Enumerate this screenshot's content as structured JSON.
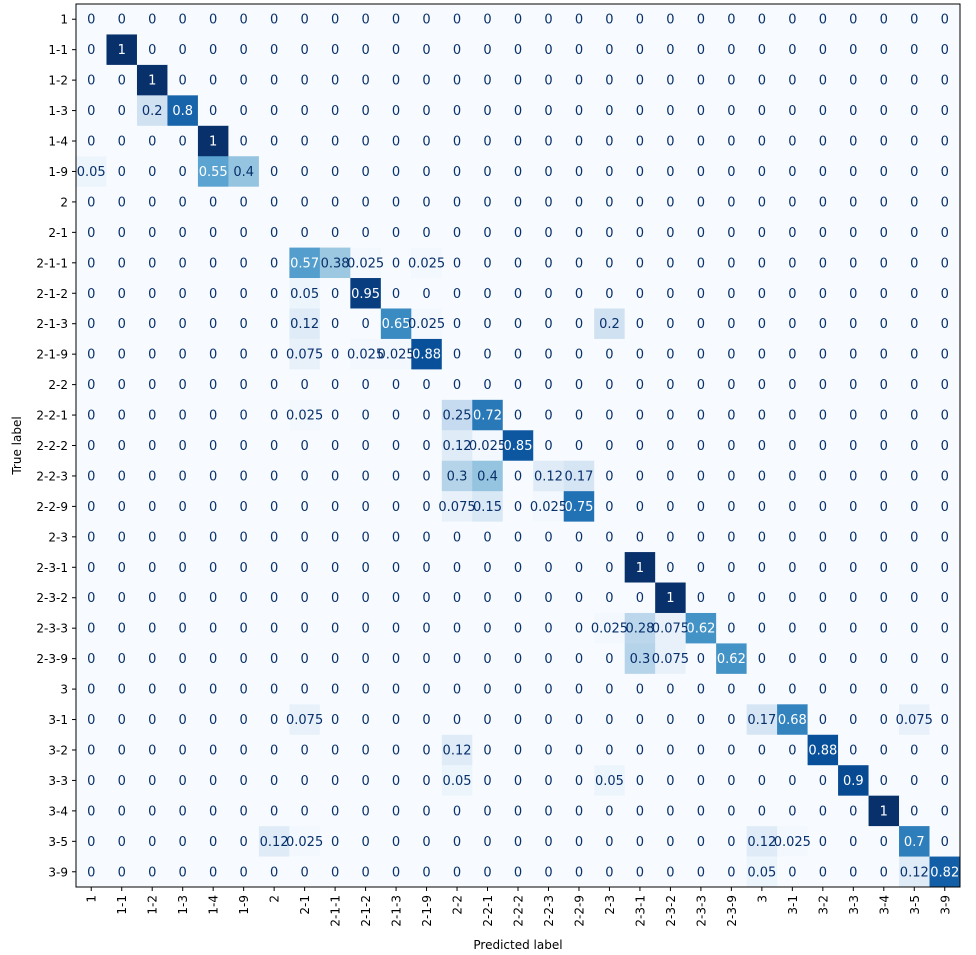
{
  "chart_data": {
    "type": "heatmap",
    "xlabel": "Predicted label",
    "ylabel": "True label",
    "labels": [
      "1",
      "1-1",
      "1-2",
      "1-3",
      "1-4",
      "1-9",
      "2",
      "2-1",
      "2-1-1",
      "2-1-2",
      "2-1-3",
      "2-1-9",
      "2-2",
      "2-2-1",
      "2-2-2",
      "2-2-3",
      "2-2-9",
      "2-3",
      "2-3-1",
      "2-3-2",
      "2-3-3",
      "2-3-9",
      "3",
      "3-1",
      "3-2",
      "3-3",
      "3-4",
      "3-5",
      "3-9"
    ],
    "cells": [
      [
        "0",
        "0",
        "0",
        "0",
        "0",
        "0",
        "0",
        "0",
        "0",
        "0",
        "0",
        "0",
        "0",
        "0",
        "0",
        "0",
        "0",
        "0",
        "0",
        "0",
        "0",
        "0",
        "0",
        "0",
        "0",
        "0",
        "0",
        "0",
        "0"
      ],
      [
        "0",
        "1",
        "0",
        "0",
        "0",
        "0",
        "0",
        "0",
        "0",
        "0",
        "0",
        "0",
        "0",
        "0",
        "0",
        "0",
        "0",
        "0",
        "0",
        "0",
        "0",
        "0",
        "0",
        "0",
        "0",
        "0",
        "0",
        "0",
        "0"
      ],
      [
        "0",
        "0",
        "1",
        "0",
        "0",
        "0",
        "0",
        "0",
        "0",
        "0",
        "0",
        "0",
        "0",
        "0",
        "0",
        "0",
        "0",
        "0",
        "0",
        "0",
        "0",
        "0",
        "0",
        "0",
        "0",
        "0",
        "0",
        "0",
        "0"
      ],
      [
        "0",
        "0",
        "0.2",
        "0.8",
        "0",
        "0",
        "0",
        "0",
        "0",
        "0",
        "0",
        "0",
        "0",
        "0",
        "0",
        "0",
        "0",
        "0",
        "0",
        "0",
        "0",
        "0",
        "0",
        "0",
        "0",
        "0",
        "0",
        "0",
        "0"
      ],
      [
        "0",
        "0",
        "0",
        "0",
        "1",
        "0",
        "0",
        "0",
        "0",
        "0",
        "0",
        "0",
        "0",
        "0",
        "0",
        "0",
        "0",
        "0",
        "0",
        "0",
        "0",
        "0",
        "0",
        "0",
        "0",
        "0",
        "0",
        "0",
        "0"
      ],
      [
        "0.05",
        "0",
        "0",
        "0",
        "0.55",
        "0.4",
        "0",
        "0",
        "0",
        "0",
        "0",
        "0",
        "0",
        "0",
        "0",
        "0",
        "0",
        "0",
        "0",
        "0",
        "0",
        "0",
        "0",
        "0",
        "0",
        "0",
        "0",
        "0",
        "0"
      ],
      [
        "0",
        "0",
        "0",
        "0",
        "0",
        "0",
        "0",
        "0",
        "0",
        "0",
        "0",
        "0",
        "0",
        "0",
        "0",
        "0",
        "0",
        "0",
        "0",
        "0",
        "0",
        "0",
        "0",
        "0",
        "0",
        "0",
        "0",
        "0",
        "0"
      ],
      [
        "0",
        "0",
        "0",
        "0",
        "0",
        "0",
        "0",
        "0",
        "0",
        "0",
        "0",
        "0",
        "0",
        "0",
        "0",
        "0",
        "0",
        "0",
        "0",
        "0",
        "0",
        "0",
        "0",
        "0",
        "0",
        "0",
        "0",
        "0",
        "0"
      ],
      [
        "0",
        "0",
        "0",
        "0",
        "0",
        "0",
        "0",
        "0.57",
        "0.38",
        "0.025",
        "0",
        "0.025",
        "0",
        "0",
        "0",
        "0",
        "0",
        "0",
        "0",
        "0",
        "0",
        "0",
        "0",
        "0",
        "0",
        "0",
        "0",
        "0",
        "0"
      ],
      [
        "0",
        "0",
        "0",
        "0",
        "0",
        "0",
        "0",
        "0.05",
        "0",
        "0.95",
        "0",
        "0",
        "0",
        "0",
        "0",
        "0",
        "0",
        "0",
        "0",
        "0",
        "0",
        "0",
        "0",
        "0",
        "0",
        "0",
        "0",
        "0",
        "0"
      ],
      [
        "0",
        "0",
        "0",
        "0",
        "0",
        "0",
        "0",
        "0.12",
        "0",
        "0",
        "0.65",
        "0.025",
        "0",
        "0",
        "0",
        "0",
        "0",
        "0.2",
        "0",
        "0",
        "0",
        "0",
        "0",
        "0",
        "0",
        "0",
        "0",
        "0",
        "0"
      ],
      [
        "0",
        "0",
        "0",
        "0",
        "0",
        "0",
        "0",
        "0.075",
        "0",
        "0.025",
        "0.025",
        "0.88",
        "0",
        "0",
        "0",
        "0",
        "0",
        "0",
        "0",
        "0",
        "0",
        "0",
        "0",
        "0",
        "0",
        "0",
        "0",
        "0",
        "0"
      ],
      [
        "0",
        "0",
        "0",
        "0",
        "0",
        "0",
        "0",
        "0",
        "0",
        "0",
        "0",
        "0",
        "0",
        "0",
        "0",
        "0",
        "0",
        "0",
        "0",
        "0",
        "0",
        "0",
        "0",
        "0",
        "0",
        "0",
        "0",
        "0",
        "0"
      ],
      [
        "0",
        "0",
        "0",
        "0",
        "0",
        "0",
        "0",
        "0.025",
        "0",
        "0",
        "0",
        "0",
        "0.25",
        "0.72",
        "0",
        "0",
        "0",
        "0",
        "0",
        "0",
        "0",
        "0",
        "0",
        "0",
        "0",
        "0",
        "0",
        "0",
        "0"
      ],
      [
        "0",
        "0",
        "0",
        "0",
        "0",
        "0",
        "0",
        "0",
        "0",
        "0",
        "0",
        "0",
        "0.12",
        "0.025",
        "0.85",
        "0",
        "0",
        "0",
        "0",
        "0",
        "0",
        "0",
        "0",
        "0",
        "0",
        "0",
        "0",
        "0",
        "0"
      ],
      [
        "0",
        "0",
        "0",
        "0",
        "0",
        "0",
        "0",
        "0",
        "0",
        "0",
        "0",
        "0",
        "0.3",
        "0.4",
        "0",
        "0.12",
        "0.17",
        "0",
        "0",
        "0",
        "0",
        "0",
        "0",
        "0",
        "0",
        "0",
        "0",
        "0",
        "0"
      ],
      [
        "0",
        "0",
        "0",
        "0",
        "0",
        "0",
        "0",
        "0",
        "0",
        "0",
        "0",
        "0",
        "0.075",
        "0.15",
        "0",
        "0.025",
        "0.75",
        "0",
        "0",
        "0",
        "0",
        "0",
        "0",
        "0",
        "0",
        "0",
        "0",
        "0",
        "0"
      ],
      [
        "0",
        "0",
        "0",
        "0",
        "0",
        "0",
        "0",
        "0",
        "0",
        "0",
        "0",
        "0",
        "0",
        "0",
        "0",
        "0",
        "0",
        "0",
        "0",
        "0",
        "0",
        "0",
        "0",
        "0",
        "0",
        "0",
        "0",
        "0",
        "0"
      ],
      [
        "0",
        "0",
        "0",
        "0",
        "0",
        "0",
        "0",
        "0",
        "0",
        "0",
        "0",
        "0",
        "0",
        "0",
        "0",
        "0",
        "0",
        "0",
        "1",
        "0",
        "0",
        "0",
        "0",
        "0",
        "0",
        "0",
        "0",
        "0",
        "0"
      ],
      [
        "0",
        "0",
        "0",
        "0",
        "0",
        "0",
        "0",
        "0",
        "0",
        "0",
        "0",
        "0",
        "0",
        "0",
        "0",
        "0",
        "0",
        "0",
        "0",
        "1",
        "0",
        "0",
        "0",
        "0",
        "0",
        "0",
        "0",
        "0",
        "0"
      ],
      [
        "0",
        "0",
        "0",
        "0",
        "0",
        "0",
        "0",
        "0",
        "0",
        "0",
        "0",
        "0",
        "0",
        "0",
        "0",
        "0",
        "0",
        "0.025",
        "0.28",
        "0.075",
        "0.62",
        "0",
        "0",
        "0",
        "0",
        "0",
        "0",
        "0",
        "0"
      ],
      [
        "0",
        "0",
        "0",
        "0",
        "0",
        "0",
        "0",
        "0",
        "0",
        "0",
        "0",
        "0",
        "0",
        "0",
        "0",
        "0",
        "0",
        "0",
        "0.3",
        "0.075",
        "0",
        "0.62",
        "0",
        "0",
        "0",
        "0",
        "0",
        "0",
        "0"
      ],
      [
        "0",
        "0",
        "0",
        "0",
        "0",
        "0",
        "0",
        "0",
        "0",
        "0",
        "0",
        "0",
        "0",
        "0",
        "0",
        "0",
        "0",
        "0",
        "0",
        "0",
        "0",
        "0",
        "0",
        "0",
        "0",
        "0",
        "0",
        "0",
        "0"
      ],
      [
        "0",
        "0",
        "0",
        "0",
        "0",
        "0",
        "0",
        "0.075",
        "0",
        "0",
        "0",
        "0",
        "0",
        "0",
        "0",
        "0",
        "0",
        "0",
        "0",
        "0",
        "0",
        "0",
        "0.17",
        "0.68",
        "0",
        "0",
        "0",
        "0.075",
        "0"
      ],
      [
        "0",
        "0",
        "0",
        "0",
        "0",
        "0",
        "0",
        "0",
        "0",
        "0",
        "0",
        "0",
        "0.12",
        "0",
        "0",
        "0",
        "0",
        "0",
        "0",
        "0",
        "0",
        "0",
        "0",
        "0",
        "0.88",
        "0",
        "0",
        "0",
        "0"
      ],
      [
        "0",
        "0",
        "0",
        "0",
        "0",
        "0",
        "0",
        "0",
        "0",
        "0",
        "0",
        "0",
        "0.05",
        "0",
        "0",
        "0",
        "0",
        "0.05",
        "0",
        "0",
        "0",
        "0",
        "0",
        "0",
        "0",
        "0.9",
        "0",
        "0",
        "0"
      ],
      [
        "0",
        "0",
        "0",
        "0",
        "0",
        "0",
        "0",
        "0",
        "0",
        "0",
        "0",
        "0",
        "0",
        "0",
        "0",
        "0",
        "0",
        "0",
        "0",
        "0",
        "0",
        "0",
        "0",
        "0",
        "0",
        "0",
        "1",
        "0",
        "0"
      ],
      [
        "0",
        "0",
        "0",
        "0",
        "0",
        "0",
        "0.12",
        "0.025",
        "0",
        "0",
        "0",
        "0",
        "0",
        "0",
        "0",
        "0",
        "0",
        "0",
        "0",
        "0",
        "0",
        "0",
        "0.12",
        "0.025",
        "0",
        "0",
        "0",
        "0.7",
        "0"
      ],
      [
        "0",
        "0",
        "0",
        "0",
        "0",
        "0",
        "0",
        "0",
        "0",
        "0",
        "0",
        "0",
        "0",
        "0",
        "0",
        "0",
        "0",
        "0",
        "0",
        "0",
        "0",
        "0",
        "0.05",
        "0",
        "0",
        "0",
        "0",
        "0.12",
        "0.82"
      ]
    ],
    "colormap": "Blues",
    "vmin": 0,
    "vmax": 1,
    "grid": false
  }
}
